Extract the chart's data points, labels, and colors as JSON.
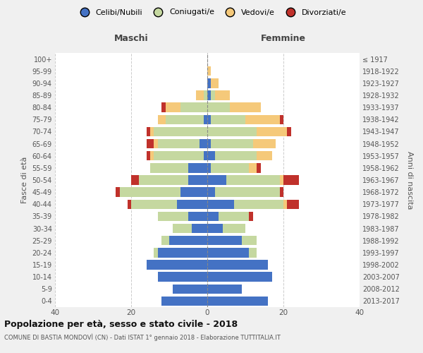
{
  "age_groups": [
    "0-4",
    "5-9",
    "10-14",
    "15-19",
    "20-24",
    "25-29",
    "30-34",
    "35-39",
    "40-44",
    "45-49",
    "50-54",
    "55-59",
    "60-64",
    "65-69",
    "70-74",
    "75-79",
    "80-84",
    "85-89",
    "90-94",
    "95-99",
    "100+"
  ],
  "birth_years": [
    "2013-2017",
    "2008-2012",
    "2003-2007",
    "1998-2002",
    "1993-1997",
    "1988-1992",
    "1983-1987",
    "1978-1982",
    "1973-1977",
    "1968-1972",
    "1963-1967",
    "1958-1962",
    "1953-1957",
    "1948-1952",
    "1943-1947",
    "1938-1942",
    "1933-1937",
    "1928-1932",
    "1923-1927",
    "1918-1922",
    "≤ 1917"
  ],
  "male": {
    "celibi": [
      12,
      9,
      13,
      16,
      13,
      10,
      4,
      5,
      8,
      7,
      5,
      5,
      1,
      2,
      0,
      1,
      0,
      0,
      0,
      0,
      0
    ],
    "coniugati": [
      0,
      0,
      0,
      0,
      1,
      2,
      5,
      8,
      12,
      16,
      13,
      10,
      13,
      11,
      14,
      10,
      7,
      1,
      0,
      0,
      0
    ],
    "vedovi": [
      0,
      0,
      0,
      0,
      0,
      0,
      0,
      0,
      0,
      0,
      0,
      0,
      1,
      1,
      1,
      2,
      4,
      2,
      0,
      0,
      0
    ],
    "divorziati": [
      0,
      0,
      0,
      0,
      0,
      0,
      0,
      0,
      1,
      1,
      2,
      0,
      1,
      2,
      1,
      0,
      1,
      0,
      0,
      0,
      0
    ]
  },
  "female": {
    "nubili": [
      16,
      9,
      17,
      16,
      11,
      9,
      4,
      3,
      7,
      2,
      5,
      1,
      2,
      1,
      0,
      1,
      0,
      1,
      1,
      0,
      0
    ],
    "coniugate": [
      0,
      0,
      0,
      0,
      2,
      4,
      6,
      8,
      13,
      17,
      14,
      10,
      11,
      11,
      13,
      9,
      6,
      1,
      0,
      0,
      0
    ],
    "vedove": [
      0,
      0,
      0,
      0,
      0,
      0,
      0,
      0,
      1,
      0,
      1,
      2,
      4,
      6,
      8,
      9,
      8,
      4,
      2,
      1,
      0
    ],
    "divorziate": [
      0,
      0,
      0,
      0,
      0,
      0,
      0,
      1,
      3,
      1,
      4,
      1,
      0,
      0,
      1,
      1,
      0,
      0,
      0,
      0,
      0
    ]
  },
  "colors": {
    "celibi": "#4472c4",
    "coniugati": "#c5d8a0",
    "vedovi": "#f5c97a",
    "divorziati": "#c0312b"
  },
  "xlim": 40,
  "title": "Popolazione per età, sesso e stato civile - 2018",
  "subtitle": "COMUNE DI BASTIA MONDOVÌ (CN) - Dati ISTAT 1° gennaio 2018 - Elaborazione TUTTITALIA.IT",
  "ylabel_left": "Fasce di età",
  "ylabel_right": "Anni di nascita",
  "xlabel_left": "Maschi",
  "xlabel_right": "Femmine",
  "legend_labels": [
    "Celibi/Nubili",
    "Coniugati/e",
    "Vedovi/e",
    "Divorziati/e"
  ],
  "background_color": "#f0f0f0",
  "plot_bg_color": "#ffffff"
}
